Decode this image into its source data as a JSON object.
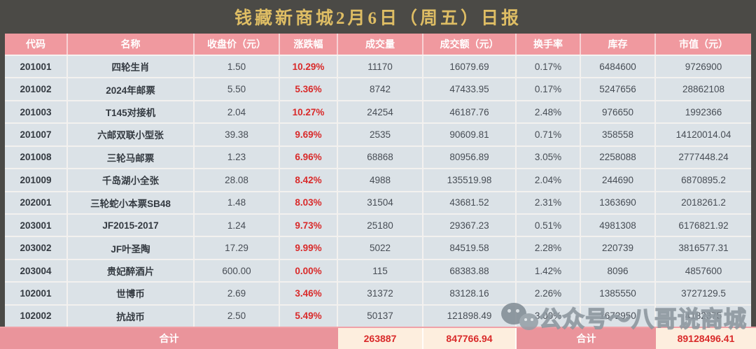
{
  "title": "钱藏新商城2月6日（周五）日报",
  "table": {
    "fields": [
      "code",
      "name",
      "close-price",
      "change-pct",
      "volume",
      "amount",
      "turnover-rate",
      "inventory",
      "market-value"
    ],
    "headers": [
      "代码",
      "名称",
      "收盘价（元）",
      "涨跌幅",
      "成交量",
      "成交额（元）",
      "换手率",
      "库存",
      "市值（元）"
    ],
    "rows": [
      [
        "201001",
        "四轮生肖",
        "1.50",
        "10.29%",
        "11170",
        "16079.69",
        "0.17%",
        "6484600",
        "9726900"
      ],
      [
        "201002",
        "2024年邮票",
        "5.50",
        "5.36%",
        "8742",
        "47433.95",
        "0.17%",
        "5247656",
        "28862108"
      ],
      [
        "201003",
        "T145对接机",
        "2.04",
        "10.27%",
        "24254",
        "46187.76",
        "2.48%",
        "976650",
        "1992366"
      ],
      [
        "201007",
        "六邮双联小型张",
        "39.38",
        "9.69%",
        "2535",
        "90609.81",
        "0.71%",
        "358558",
        "14120014.04"
      ],
      [
        "201008",
        "三轮马邮票",
        "1.23",
        "6.96%",
        "68868",
        "80956.89",
        "3.05%",
        "2258088",
        "2777448.24"
      ],
      [
        "201009",
        "千岛湖小全张",
        "28.08",
        "8.42%",
        "4988",
        "135519.98",
        "2.04%",
        "244690",
        "6870895.2"
      ],
      [
        "202001",
        "三轮蛇小本票SB48",
        "1.48",
        "8.03%",
        "31504",
        "43681.52",
        "2.31%",
        "1363690",
        "2018261.2"
      ],
      [
        "203001",
        "JF2015-2017",
        "1.24",
        "9.73%",
        "25180",
        "29367.23",
        "0.51%",
        "4981308",
        "6176821.92"
      ],
      [
        "203002",
        "JF叶圣陶",
        "17.29",
        "9.99%",
        "5022",
        "84519.58",
        "2.28%",
        "220739",
        "3816577.31"
      ],
      [
        "203004",
        "贵妃醉酒片",
        "600.00",
        "0.00%",
        "115",
        "68383.88",
        "1.42%",
        "8096",
        "4857600"
      ],
      [
        "102001",
        "世博币",
        "2.69",
        "3.46%",
        "31372",
        "83128.16",
        "2.26%",
        "1385550",
        "3727129.5"
      ],
      [
        "102002",
        "抗战币",
        "2.50",
        "5.49%",
        "50137",
        "121898.49",
        "3.00%",
        "1672950",
        "4182375"
      ]
    ]
  },
  "totals": {
    "label_left": "合计",
    "volume": "263887",
    "amount": "847766.94",
    "label_right": "合计",
    "market_value": "89128496.41"
  },
  "watermark": {
    "icon": "wechat-icon",
    "text": "公众号～八哥说商城"
  },
  "colors": {
    "title_gold": "#debd64",
    "titlebar_bg": "#4b4a46",
    "header_pink": "#f0999f",
    "row_bg": "#dbe2e7",
    "change_red": "#d92a2a",
    "totals_pink": "#ea949b",
    "totals_cream": "#fdeede"
  }
}
